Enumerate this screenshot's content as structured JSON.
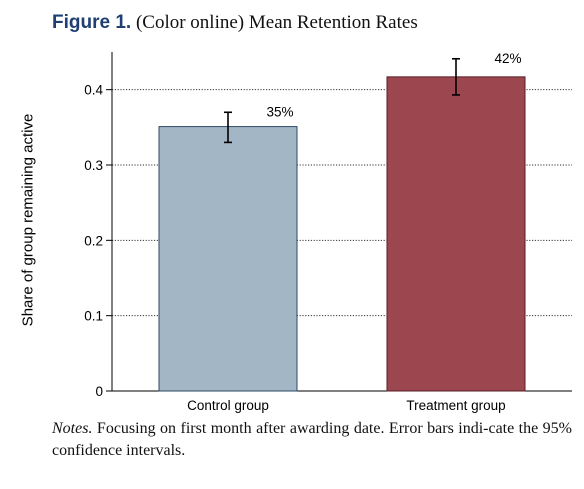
{
  "figure": {
    "label": "Figure 1.",
    "title": "(Color online) Mean Retention Rates"
  },
  "notes": {
    "label": "Notes.",
    "text": "Focusing on first month after awarding date. Error bars indi-cate the 95% confidence intervals."
  },
  "chart_data": {
    "type": "bar",
    "ylabel": "Share of group remaining active",
    "xlabel": "",
    "ylim": [
      0,
      0.45
    ],
    "yticks": [
      0,
      0.1,
      0.2,
      0.3,
      0.4
    ],
    "ytick_labels": [
      "0",
      "0.1",
      "0.2",
      "0.3",
      "0.4"
    ],
    "grid": "horizontal dotted",
    "categories": [
      "Control group",
      "Treatment group"
    ],
    "values": [
      0.351,
      0.417
    ],
    "value_labels": [
      "35%",
      "42%"
    ],
    "error_bars": [
      {
        "low": 0.33,
        "high": 0.37
      },
      {
        "low": 0.393,
        "high": 0.441
      }
    ],
    "colors": [
      "#a3b6c6",
      "#9c4650"
    ],
    "edge_colors": [
      "#2c4a66",
      "#5a1e24"
    ]
  }
}
